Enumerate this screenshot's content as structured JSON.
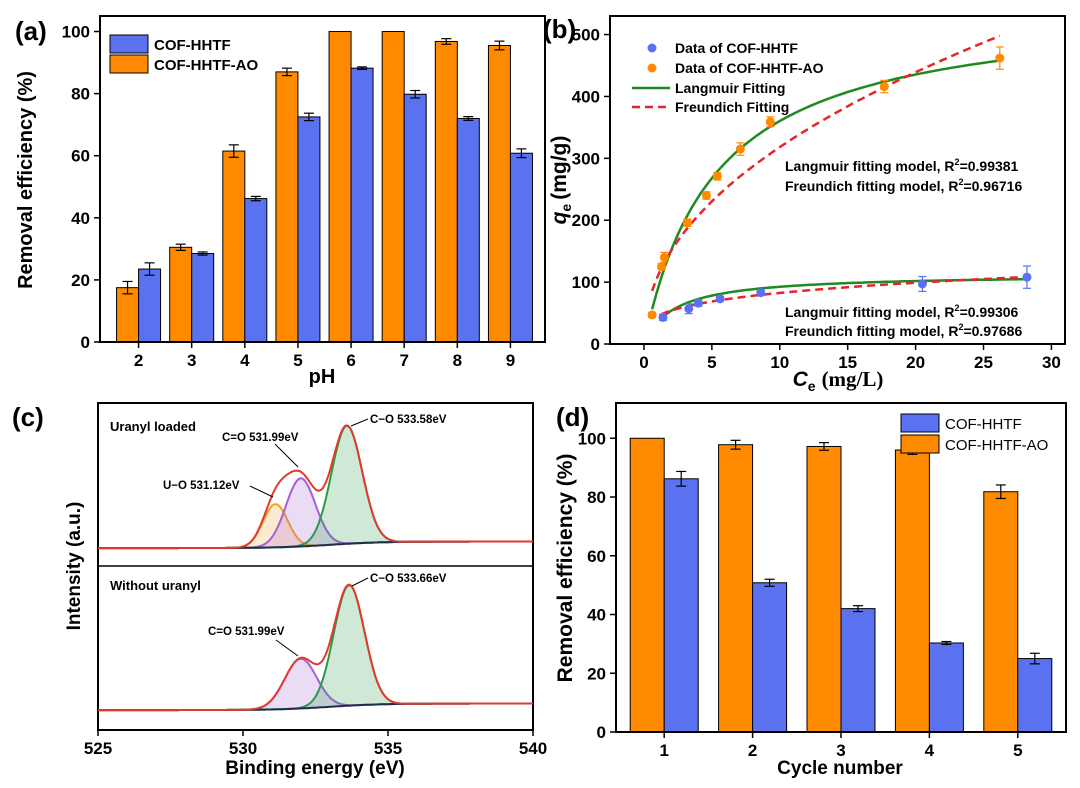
{
  "colors": {
    "hhtf": "#5a72f0",
    "ao": "#ff8a00",
    "langmuir": "#1f8a1f",
    "freundlich": "#e8242a",
    "xps_envelope": "#e23a2c",
    "xps_co": "#2a9a4a",
    "xps_c_o": "#a65fd6",
    "xps_uo": "#f2a22a",
    "xps_background": "#1e2d4a",
    "axis": "#000000"
  },
  "chart_data": [
    {
      "panel": "(a)",
      "type": "bar",
      "xlabel": "pH",
      "ylabel": "Removal efficiency (%)",
      "ylim": [
        0,
        105
      ],
      "yticks": [
        0,
        20,
        40,
        60,
        80,
        100
      ],
      "categories": [
        "2",
        "3",
        "4",
        "5",
        "6",
        "7",
        "8",
        "9"
      ],
      "series": [
        {
          "name": "COF-HHTF-AO",
          "values": [
            17.5,
            30.5,
            61.5,
            87,
            100,
            100,
            96.8,
            95.5
          ],
          "errors": [
            2,
            1,
            2,
            1.2,
            0,
            0,
            0.9,
            1.4
          ]
        },
        {
          "name": "COF-HHTF",
          "values": [
            23.5,
            28.5,
            46.2,
            72.5,
            88.2,
            79.8,
            72,
            60.8
          ],
          "errors": [
            2,
            0.5,
            0.7,
            1.2,
            0.4,
            1.2,
            0.6,
            1.4
          ]
        }
      ],
      "legend": [
        "COF-HHTF",
        "COF-HHTF-AO"
      ],
      "legend_position": "top-left"
    },
    {
      "panel": "(b)",
      "type": "scatter",
      "xlabel_main": "C",
      "xlabel_sub": "e",
      "xlabel_unit": "(mg/L)",
      "ylabel_main": "q",
      "ylabel_sub": "e",
      "ylabel_unit": "(mg/g)",
      "xlim": [
        -2.5,
        31
      ],
      "ylim": [
        0,
        530
      ],
      "xticks": [
        0,
        5,
        10,
        15,
        20,
        25,
        30
      ],
      "yticks": [
        0,
        100,
        200,
        300,
        400,
        500
      ],
      "series": [
        {
          "name": "Data of COF-HHTF",
          "x": [
            1.4,
            3.3,
            4.0,
            5.6,
            8.6,
            20.5,
            28.2
          ],
          "y": [
            43,
            57,
            66,
            73,
            83,
            97,
            108
          ],
          "errors": [
            5,
            8,
            5,
            4,
            4,
            12,
            18
          ]
        },
        {
          "name": "Data of COF-HHTF-AO",
          "x": [
            0.6,
            1.3,
            1.5,
            3.2,
            4.6,
            5.4,
            7.1,
            9.3,
            17.7,
            26.2
          ],
          "y": [
            47,
            125,
            140,
            196,
            240,
            271,
            315,
            359,
            416,
            462
          ],
          "errors": [
            4,
            5,
            8,
            6,
            6,
            6,
            10,
            8,
            10,
            18
          ]
        }
      ],
      "fits": [
        {
          "name": "Langmuir Fitting",
          "model": "langmuir",
          "qm": 550,
          "kl": 0.19,
          "x_range": [
            0.6,
            26.2
          ]
        },
        {
          "name": "Freundich Fitting",
          "model": "freundlich",
          "kf": 109,
          "n": 2.15,
          "x_range": [
            0.6,
            26.2
          ]
        },
        {
          "name": "Langmuir Fitting",
          "model": "langmuir",
          "qm": 113,
          "kl": 0.45,
          "x_range": [
            1.3,
            28.2
          ]
        },
        {
          "name": "Freundich Fitting",
          "model": "freundlich",
          "kf": 45,
          "n": 3.8,
          "x_range": [
            1.3,
            28.2
          ]
        }
      ],
      "legend": [
        "Data of COF-HHTF",
        "Data of COF-HHTF-AO",
        "Langmuir Fitting",
        "Freundich Fitting"
      ],
      "legend_position": "top-left",
      "annotations": [
        {
          "model": "Langmuir fitting model, R",
          "sup": "2",
          "value": "=0.99381"
        },
        {
          "model": "Freundich fitting model, R",
          "sup": "2",
          "value": "=0.96716"
        },
        {
          "model": "Langmuir fitting model, R",
          "sup": "2",
          "value": "=0.99306"
        },
        {
          "model": "Freundich fitting model, R",
          "sup": "2",
          "value": "=0.97686"
        }
      ]
    },
    {
      "panel": "(c)",
      "type": "line",
      "xlabel": "Binding energy  (eV)",
      "ylabel": "Intensity  (a.u.)",
      "xlim": [
        525,
        540
      ],
      "xticks": [
        525,
        530,
        535,
        540
      ],
      "subpanels": [
        {
          "title": "Uranyl loaded",
          "baseline": 0.03,
          "bg_step": 0.05,
          "peaks": [
            {
              "label": "U−O 531.12eV",
              "center": 531.12,
              "height": 0.33,
              "fwhm": 1.0
            },
            {
              "label": "C=O 531.99eV",
              "center": 531.99,
              "height": 0.52,
              "fwhm": 1.2
            },
            {
              "label": "C−O 533.58eV",
              "center": 533.58,
              "height": 0.9,
              "fwhm": 1.25
            }
          ]
        },
        {
          "title": "Without uranyl",
          "baseline": 0.03,
          "bg_step": 0.05,
          "peaks": [
            {
              "label": "C=O 531.99eV",
              "center": 531.99,
              "height": 0.38,
              "fwhm": 1.3
            },
            {
              "label": "C−O 533.66eV",
              "center": 533.66,
              "height": 0.92,
              "fwhm": 1.25
            }
          ]
        }
      ]
    },
    {
      "panel": "(d)",
      "type": "bar",
      "xlabel": "Cycle number",
      "ylabel": "Removal efficiency (%)",
      "ylim": [
        0,
        112
      ],
      "yticks": [
        0,
        20,
        40,
        60,
        80,
        100
      ],
      "categories": [
        "1",
        "2",
        "3",
        "4",
        "5"
      ],
      "series": [
        {
          "name": "COF-HHTF-AO",
          "values": [
            100,
            97.8,
            97.2,
            96,
            81.8
          ],
          "errors": [
            0,
            1.5,
            1.3,
            1.5,
            2.3
          ]
        },
        {
          "name": "COF-HHTF",
          "values": [
            86.2,
            50.8,
            42,
            30.3,
            25
          ],
          "errors": [
            2.5,
            1.2,
            1,
            0.5,
            1.8
          ]
        }
      ],
      "legend": [
        "COF-HHTF",
        "COF-HHTF-AO"
      ],
      "legend_position": "top-right"
    }
  ]
}
